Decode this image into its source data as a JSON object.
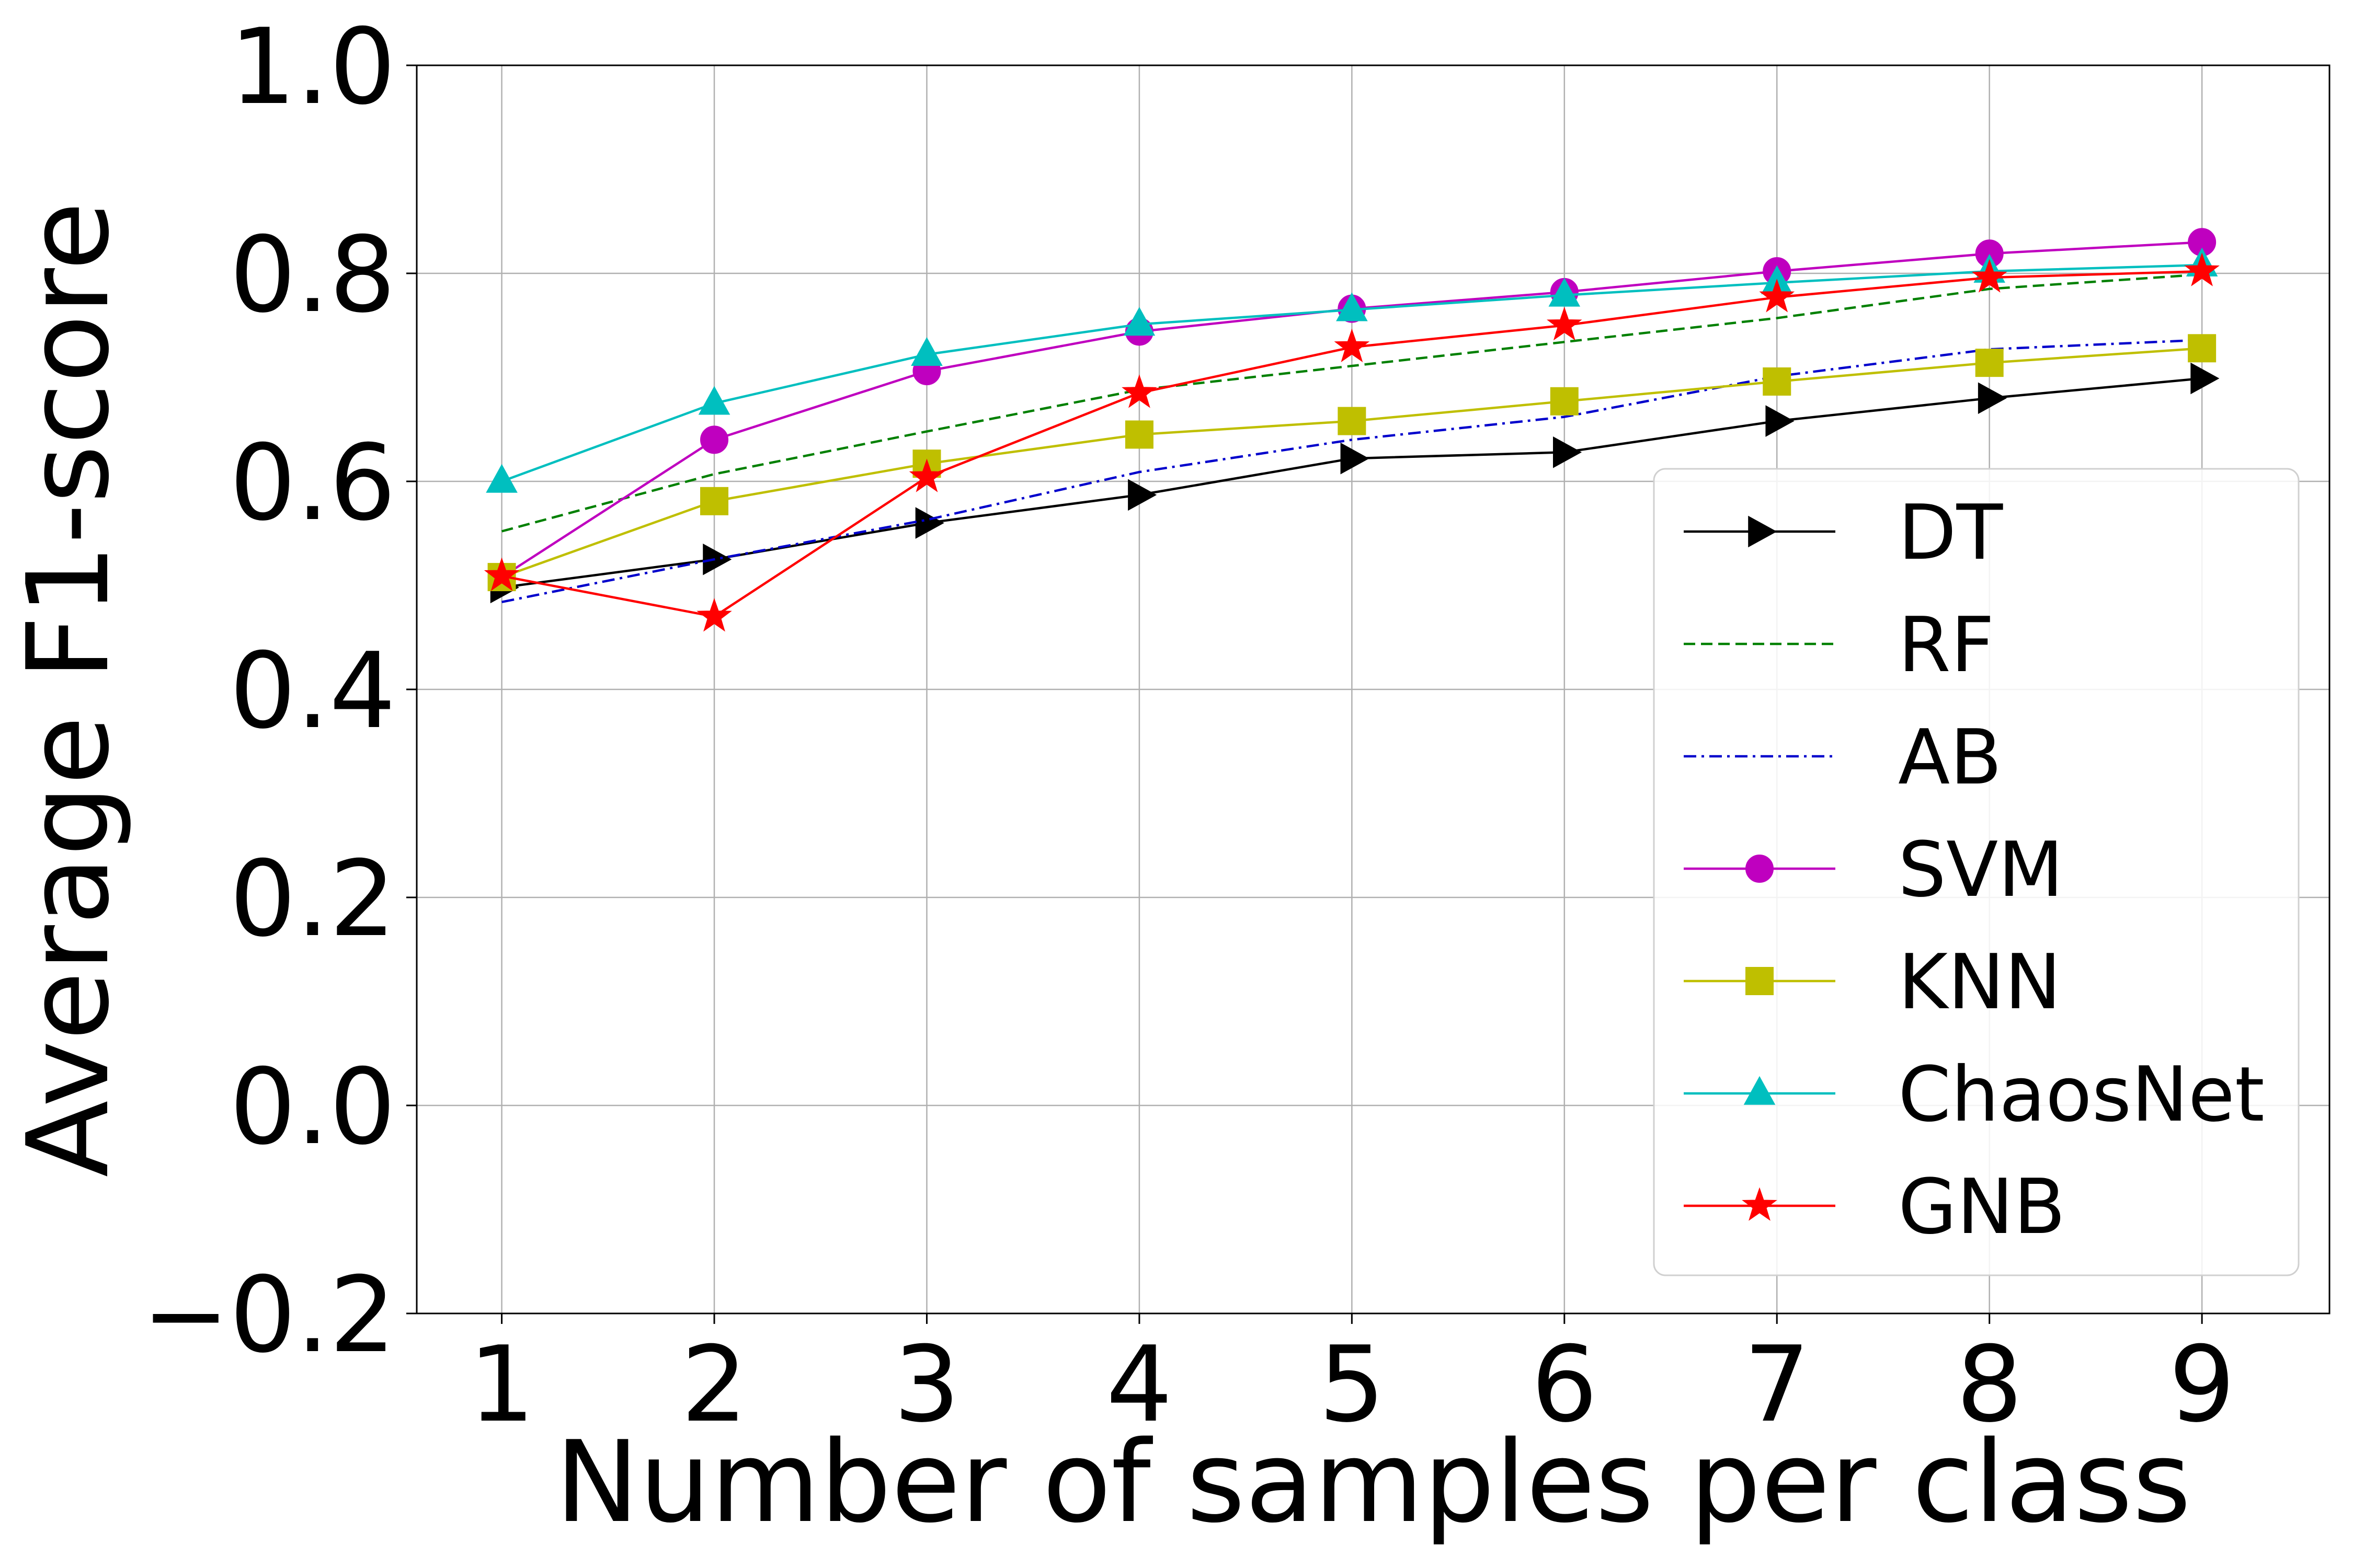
{
  "chart_data": {
    "type": "line",
    "title": "",
    "xlabel": "Number of samples per class",
    "ylabel": "Average F1-score",
    "x": [
      1,
      2,
      3,
      4,
      5,
      6,
      7,
      8,
      9
    ],
    "xlim": [
      0.6,
      9.6
    ],
    "ylim": [
      -0.2,
      1.0
    ],
    "x_ticks": [
      "1",
      "2",
      "3",
      "4",
      "5",
      "6",
      "7",
      "8",
      "9"
    ],
    "y_ticks": [
      "−0.2",
      "0.0",
      "0.2",
      "0.4",
      "0.6",
      "0.8",
      "1.0"
    ],
    "y_tick_values": [
      -0.2,
      0.0,
      0.2,
      0.4,
      0.6,
      0.8,
      1.0
    ],
    "grid": true,
    "legend_position": "right",
    "series": [
      {
        "name": "DT",
        "color": "#000000",
        "marker": "triangle-right",
        "dash": "solid",
        "values": [
          0.498,
          0.525,
          0.56,
          0.587,
          0.622,
          0.628,
          0.658,
          0.68,
          0.699
        ]
      },
      {
        "name": "RF",
        "color": "#008000",
        "marker": "none",
        "dash": "dashed",
        "values": [
          0.552,
          0.607,
          0.648,
          0.688,
          0.711,
          0.734,
          0.757,
          0.785,
          0.799
        ]
      },
      {
        "name": "AB",
        "color": "#0000cc",
        "marker": "none",
        "dash": "dashdot",
        "values": [
          0.484,
          0.525,
          0.563,
          0.609,
          0.64,
          0.662,
          0.701,
          0.727,
          0.736
        ]
      },
      {
        "name": "SVM",
        "color": "#bf00bf",
        "marker": "circle",
        "dash": "solid",
        "values": [
          0.508,
          0.64,
          0.706,
          0.744,
          0.766,
          0.782,
          0.802,
          0.819,
          0.83
        ]
      },
      {
        "name": "KNN",
        "color": "#bfbf00",
        "marker": "square",
        "dash": "solid",
        "values": [
          0.508,
          0.581,
          0.617,
          0.645,
          0.658,
          0.677,
          0.696,
          0.714,
          0.728
        ]
      },
      {
        "name": "ChaosNet",
        "color": "#00bfbf",
        "marker": "triangle-up",
        "dash": "solid",
        "values": [
          0.6,
          0.675,
          0.722,
          0.751,
          0.765,
          0.779,
          0.791,
          0.802,
          0.808
        ]
      },
      {
        "name": "GNB",
        "color": "#ff0000",
        "marker": "star",
        "dash": "solid",
        "values": [
          0.509,
          0.47,
          0.604,
          0.685,
          0.729,
          0.75,
          0.777,
          0.796,
          0.802
        ]
      }
    ]
  }
}
